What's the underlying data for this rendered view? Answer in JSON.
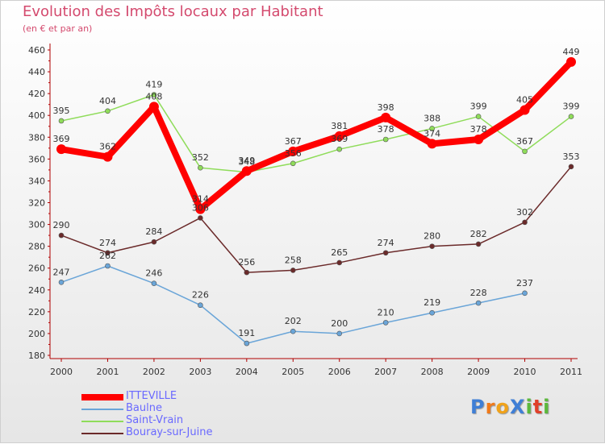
{
  "header": {
    "title": "Evolution des Impôts locaux par Habitant",
    "subtitle": "(en € et par an)"
  },
  "colors": {
    "title": "#d44a6e",
    "legend_text": "#6a69ff",
    "axis": "#b00000",
    "tick_text": "#333333"
  },
  "chart_data": {
    "type": "line",
    "title": "Evolution des Impôts locaux par Habitant",
    "subtitle": "(en € et par an)",
    "xlabel": "",
    "ylabel": "",
    "x": [
      "2000",
      "2001",
      "2002",
      "2003",
      "2004",
      "2005",
      "2006",
      "2007",
      "2008",
      "2009",
      "2010",
      "2011"
    ],
    "ylim": [
      180,
      460
    ],
    "yticks": [
      180,
      200,
      220,
      240,
      260,
      280,
      300,
      320,
      340,
      360,
      380,
      400,
      420,
      440,
      460
    ],
    "grid": false,
    "legend_position": "bottom-left",
    "series": [
      {
        "name": "ITTEVILLE",
        "color": "#ff0000",
        "emphasis": true,
        "values": [
          369,
          362,
          408,
          314,
          349,
          367,
          381,
          398,
          374,
          378,
          405,
          449
        ]
      },
      {
        "name": "Baulne",
        "color": "#6aa5d8",
        "emphasis": false,
        "values": [
          247,
          262,
          246,
          226,
          191,
          202,
          200,
          210,
          219,
          228,
          237,
          null
        ]
      },
      {
        "name": "Saint-Vrain",
        "color": "#8fdc5a",
        "emphasis": false,
        "values": [
          395,
          404,
          419,
          352,
          348,
          356,
          369,
          378,
          388,
          399,
          367,
          399
        ]
      },
      {
        "name": "Bouray-sur-Juine",
        "color": "#6b2a2a",
        "emphasis": false,
        "values": [
          290,
          274,
          284,
          306,
          256,
          258,
          265,
          274,
          280,
          282,
          302,
          353
        ]
      }
    ]
  },
  "brand": {
    "letters": [
      {
        "char": "P",
        "color": "#3f7fd6"
      },
      {
        "char": "r",
        "color": "#f07a1a"
      },
      {
        "char": "o",
        "color": "#f0a21a"
      },
      {
        "char": "X",
        "color": "#3f7fd6"
      },
      {
        "char": "i",
        "color": "#5cb83c"
      },
      {
        "char": "t",
        "color": "#e0402a"
      },
      {
        "char": "i",
        "color": "#5cb83c"
      }
    ]
  }
}
